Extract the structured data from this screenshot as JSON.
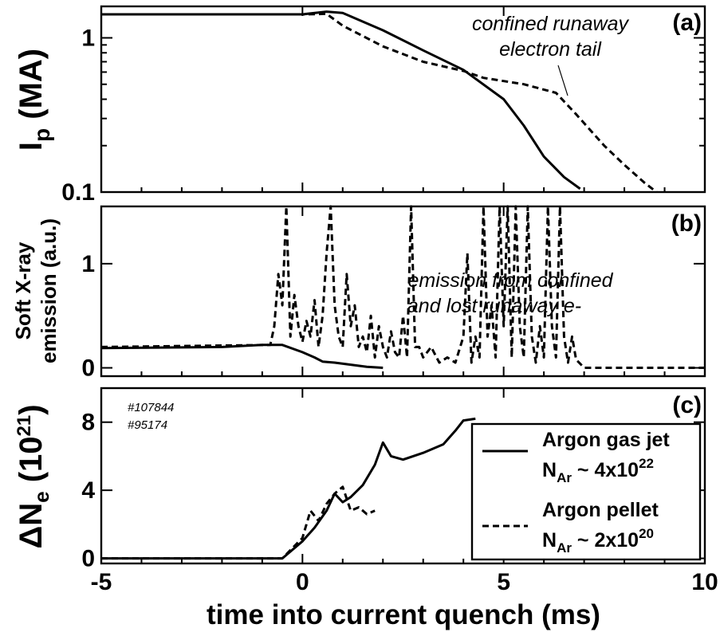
{
  "chart_data": [
    {
      "panel": "(a)",
      "type": "line",
      "y_scale": "log",
      "ylabel": {
        "main": "I",
        "sub": "p",
        "rest": " (MA)"
      },
      "ylim": [
        0.1,
        1.6
      ],
      "yticks": [
        {
          "v": 1,
          "label": "1"
        },
        {
          "v": 0.1,
          "label": "0.1"
        }
      ],
      "xlim": [
        -5,
        10
      ],
      "annotation": [
        "confined runaway",
        "electron tail"
      ],
      "series": [
        {
          "style": "solid",
          "x": [
            -5,
            -2,
            0,
            0.6,
            1.0,
            2.0,
            3.0,
            4.0,
            5.0,
            5.5,
            6.0,
            6.5,
            6.9
          ],
          "y": [
            1.42,
            1.42,
            1.42,
            1.48,
            1.45,
            1.12,
            0.83,
            0.62,
            0.4,
            0.27,
            0.17,
            0.125,
            0.105
          ]
        },
        {
          "style": "dashed",
          "x": [
            -5,
            0,
            0.6,
            1.0,
            2.0,
            3.0,
            4.0,
            4.5,
            5.5,
            6.3,
            6.8,
            7.5,
            8.0,
            8.5,
            8.8
          ],
          "y": [
            1.42,
            1.42,
            1.43,
            1.2,
            0.88,
            0.7,
            0.61,
            0.55,
            0.5,
            0.44,
            0.32,
            0.2,
            0.15,
            0.115,
            0.1
          ]
        }
      ]
    },
    {
      "panel": "(b)",
      "type": "line",
      "ylabel": [
        "Soft X-ray",
        "emission (a.u.)"
      ],
      "ylim": [
        -0.08,
        1.55
      ],
      "yticks": [
        {
          "v": 0,
          "label": "0"
        },
        {
          "v": 1,
          "label": "1"
        }
      ],
      "xlim": [
        -5,
        10
      ],
      "annotation": [
        "emission from confined",
        "and lost runaway e-"
      ],
      "series": [
        {
          "style": "solid",
          "x": [
            -5,
            -2,
            -1,
            -0.5,
            0,
            0.3,
            0.5,
            0.8,
            1.2,
            1.6,
            2.0
          ],
          "y": [
            0.19,
            0.2,
            0.22,
            0.22,
            0.15,
            0.1,
            0.06,
            0.05,
            0.03,
            0.01,
            0.0
          ]
        },
        {
          "style": "dashed",
          "x": [
            -5,
            -0.8,
            -0.7,
            -0.6,
            -0.5,
            -0.4,
            -0.3,
            -0.2,
            -0.1,
            0,
            0.1,
            0.2,
            0.3,
            0.4,
            0.5,
            0.6,
            0.7,
            0.8,
            0.9,
            1.0,
            1.1,
            1.2,
            1.3,
            1.4,
            1.5,
            1.6,
            1.7,
            1.8,
            1.9,
            2.0,
            2.1,
            2.2,
            2.3,
            2.4,
            2.5,
            2.6,
            2.7,
            2.8,
            2.9,
            3.0,
            3.2,
            3.4,
            3.6,
            3.8,
            4.0,
            4.1,
            4.2,
            4.3,
            4.4,
            4.5,
            4.6,
            4.7,
            4.8,
            4.9,
            5.0,
            5.1,
            5.2,
            5.3,
            5.4,
            5.5,
            5.6,
            5.7,
            5.8,
            5.9,
            6.0,
            6.1,
            6.2,
            6.3,
            6.4,
            6.5,
            6.6,
            6.7,
            6.8,
            7.0,
            7.5,
            8.0,
            10
          ],
          "y": [
            0.2,
            0.22,
            0.4,
            0.9,
            0.6,
            1.55,
            0.3,
            0.7,
            0.4,
            0.25,
            0.45,
            0.3,
            0.65,
            0.2,
            0.5,
            1.1,
            1.55,
            0.6,
            0.3,
            0.2,
            0.9,
            0.4,
            0.6,
            0.2,
            0.3,
            0.15,
            0.5,
            0.1,
            0.4,
            0.2,
            0.1,
            0.35,
            0.15,
            0.1,
            0.5,
            0.1,
            1.55,
            0.2,
            0.2,
            0.1,
            0.2,
            0.05,
            0.1,
            0.05,
            0.3,
            1.1,
            0.05,
            0.3,
            0.1,
            1.55,
            0.3,
            0.6,
            0.1,
            1.55,
            0.4,
            1.55,
            0.1,
            1.55,
            0.4,
            0.1,
            1.55,
            0.3,
            0.05,
            0.4,
            0.1,
            1.55,
            0.4,
            0.1,
            1.55,
            0.3,
            0.05,
            0.3,
            0.08,
            0.0,
            0.0,
            0.0,
            0.0
          ]
        }
      ]
    },
    {
      "panel": "(c)",
      "type": "line",
      "ylabel": {
        "main": "ΔN",
        "sub": "e",
        "rest": " (10",
        "sup": "21",
        "close": ")"
      },
      "ylim": [
        -0.3,
        10
      ],
      "yticks": [
        {
          "v": 0,
          "label": "0"
        },
        {
          "v": 4,
          "label": "4"
        },
        {
          "v": 8,
          "label": "8"
        }
      ],
      "xlim": [
        -5,
        10
      ],
      "xticks": [
        {
          "v": -5,
          "label": "-5"
        },
        {
          "v": 0,
          "label": "0"
        },
        {
          "v": 5,
          "label": "5"
        },
        {
          "v": 10,
          "label": "10"
        }
      ],
      "xlabel": "time into current quench (ms)",
      "shot_numbers": [
        "#107844",
        "#95174"
      ],
      "legend": [
        {
          "style": "solid",
          "line1": "Argon gas jet",
          "line2_main": "N",
          "line2_sub": "Ar",
          "line2_rest": " ~ 4x10",
          "line2_sup": "22"
        },
        {
          "style": "dashed",
          "line1": "Argon pellet",
          "line2_main": "N",
          "line2_sub": "Ar",
          "line2_rest": " ~ 2x10",
          "line2_sup": "20"
        }
      ],
      "series": [
        {
          "style": "solid",
          "name": "Argon gas jet",
          "x": [
            -5,
            -1,
            -0.5,
            0,
            0.3,
            0.6,
            0.8,
            1.0,
            1.2,
            1.5,
            1.8,
            2.0,
            2.2,
            2.5,
            3.0,
            3.5,
            3.8,
            4.0,
            4.3
          ],
          "y": [
            0,
            0,
            0,
            1.0,
            1.8,
            2.8,
            3.8,
            3.3,
            3.6,
            4.3,
            5.5,
            6.8,
            6.0,
            5.8,
            6.2,
            6.7,
            7.5,
            8.1,
            8.2
          ]
        },
        {
          "style": "dashed",
          "name": "Argon pellet",
          "x": [
            -5,
            -0.5,
            0,
            0.2,
            0.4,
            0.6,
            0.8,
            1.0,
            1.2,
            1.4,
            1.6,
            1.8
          ],
          "y": [
            0,
            0,
            1.2,
            2.8,
            2.2,
            3.2,
            3.8,
            4.2,
            2.8,
            3.0,
            2.6,
            2.8
          ]
        }
      ]
    }
  ]
}
